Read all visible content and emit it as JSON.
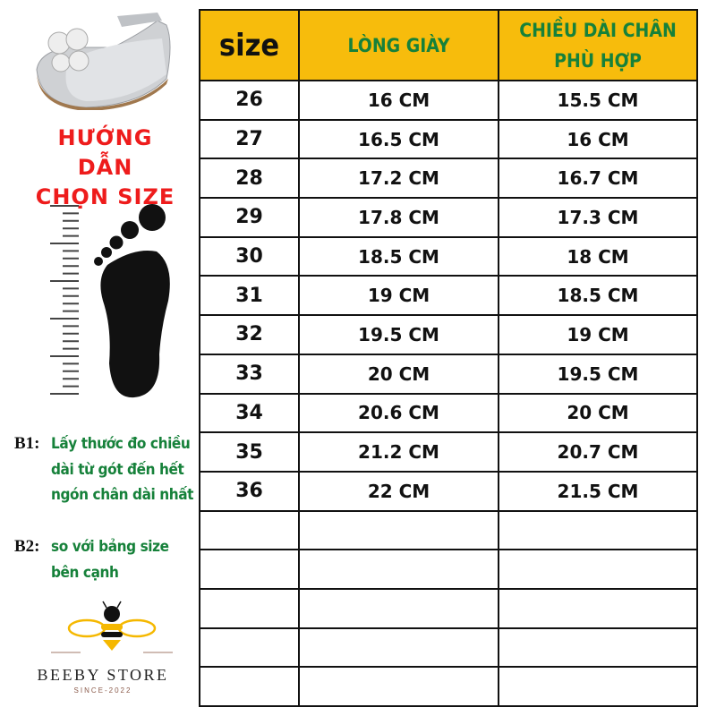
{
  "guide": {
    "title_line1": "HƯỚNG DẪN",
    "title_line2": "CHỌN SIZE"
  },
  "steps": [
    {
      "label": "B1:",
      "text": "Lấy thước đo chiều dài từ gót đến hết ngón chân dài nhất"
    },
    {
      "label": "B2:",
      "text": "so với bảng size bên cạnh"
    }
  ],
  "brand": {
    "name": "BEEBY STORE",
    "since": "SINCE-2022"
  },
  "colors": {
    "header_bg": "#f7bc0c",
    "header_text": "#16813a",
    "title_red": "#ee1c1c"
  },
  "table": {
    "headers": [
      "size",
      "LÒNG GIÀY",
      "CHIỀU DÀI CHÂN PHÙ HỢP"
    ],
    "rows": [
      [
        "26",
        "16 CM",
        "15.5 CM"
      ],
      [
        "27",
        "16.5 CM",
        "16 CM"
      ],
      [
        "28",
        "17.2 CM",
        "16.7 CM"
      ],
      [
        "29",
        "17.8 CM",
        "17.3 CM"
      ],
      [
        "30",
        "18.5 CM",
        "18 CM"
      ],
      [
        "31",
        "19 CM",
        "18.5 CM"
      ],
      [
        "32",
        "19.5 CM",
        "19 CM"
      ],
      [
        "33",
        "20 CM",
        "19.5 CM"
      ],
      [
        "34",
        "20.6 CM",
        "20 CM"
      ],
      [
        "35",
        "21.2 CM",
        "20.7 CM"
      ],
      [
        "36",
        "22 CM",
        "21.5 CM"
      ],
      [
        "",
        "",
        ""
      ],
      [
        "",
        "",
        ""
      ],
      [
        "",
        "",
        ""
      ],
      [
        "",
        "",
        ""
      ],
      [
        "",
        "",
        ""
      ]
    ]
  }
}
